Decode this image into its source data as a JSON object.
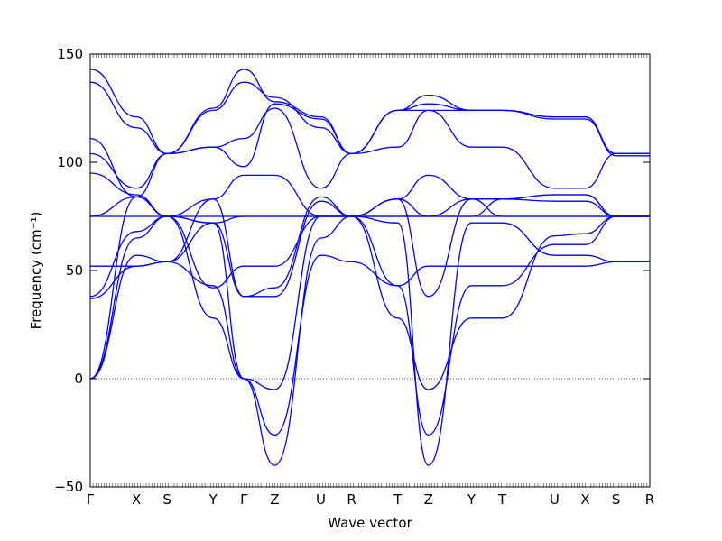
{
  "chart_data": {
    "type": "line",
    "xlabel": "Wave vector",
    "ylabel": "Frequency (cm⁻¹)",
    "ylim": [
      -50,
      150
    ],
    "yticks": [
      -50,
      0,
      50,
      100,
      150
    ],
    "xlim": [
      0,
      18.2
    ],
    "high_symmetry_points": [
      {
        "label": "Γ",
        "x": 0
      },
      {
        "label": "X",
        "x": 1.5
      },
      {
        "label": "S",
        "x": 2.5
      },
      {
        "label": "Y",
        "x": 4.0
      },
      {
        "label": "Γ",
        "x": 5.0
      },
      {
        "label": "Z",
        "x": 6.0
      },
      {
        "label": "U",
        "x": 7.5
      },
      {
        "label": "R",
        "x": 8.5
      },
      {
        "label": "T",
        "x": 10.0
      },
      {
        "label": "Z",
        "x": 11.0
      },
      {
        "label": "Y",
        "x": 12.4
      },
      {
        "label": "T",
        "x": 13.4
      },
      {
        "label": "U",
        "x": 15.1
      },
      {
        "label": "X",
        "x": 16.1
      },
      {
        "label": "S",
        "x": 17.1
      },
      {
        "label": "R",
        "x": 18.2
      }
    ],
    "zero_line": {
      "y": 0,
      "style": "dotted"
    },
    "series_color": "#0000ff",
    "bands": [
      {
        "x": [
          0,
          1.5,
          2.5,
          4.0,
          5.0,
          6.0,
          7.5,
          8.5,
          10.0,
          11.0,
          12.4,
          13.4,
          15.1,
          16.1,
          17.1,
          18.2
        ],
        "y": [
          0,
          84,
          75,
          72,
          0,
          -5,
          75,
          75,
          28,
          -5,
          28,
          28,
          66,
          67,
          75,
          75
        ]
      },
      {
        "x": [
          0,
          1.5,
          2.5,
          4.0,
          5.0,
          6.0,
          7.5,
          8.5,
          10.0,
          11.0,
          12.4,
          13.4,
          15.1,
          16.1,
          17.1,
          18.2
        ],
        "y": [
          0,
          65,
          75,
          28,
          0,
          -26,
          57,
          54,
          43,
          -26,
          43,
          43,
          62,
          62,
          75,
          75
        ]
      },
      {
        "x": [
          0,
          1.5,
          2.5,
          4.0,
          5.0,
          6.0,
          7.5,
          8.5,
          10.0,
          11.0,
          12.4,
          13.4,
          15.1,
          16.1,
          17.1,
          18.2
        ],
        "y": [
          0,
          57,
          54,
          43,
          0,
          -40,
          65,
          75,
          72,
          -40,
          72,
          72,
          57,
          57,
          54,
          54
        ]
      },
      {
        "x": [
          0,
          1.5,
          2.5,
          4.0,
          5.0,
          6.0,
          7.5,
          8.5,
          10.0,
          11.0,
          12.4,
          13.4,
          15.1,
          16.1,
          17.1,
          18.2
        ],
        "y": [
          37,
          52,
          54,
          72,
          38,
          42,
          84,
          75,
          83,
          38,
          83,
          83,
          82,
          82,
          75,
          75
        ]
      },
      {
        "x": [
          0,
          1.5,
          2.5,
          4.0,
          5.0,
          6.0,
          7.5,
          8.5,
          10.0,
          11.0,
          12.4,
          13.4,
          15.1,
          16.1,
          17.1,
          18.2
        ],
        "y": [
          38,
          68,
          75,
          42,
          52,
          52,
          75,
          75,
          43,
          52,
          52,
          52,
          52,
          52,
          54,
          54
        ]
      },
      {
        "x": [
          0,
          1.5,
          2.5,
          4.0,
          5.0,
          6.0,
          7.5,
          8.5,
          10.0,
          11.0,
          12.4,
          13.4,
          15.1,
          16.1,
          17.1,
          18.2
        ],
        "y": [
          52,
          52,
          54,
          83,
          38,
          38,
          82,
          75,
          83,
          94,
          83,
          83,
          85,
          85,
          75,
          75
        ]
      },
      {
        "x": [
          0,
          1.5,
          2.5,
          4.0,
          5.0,
          6.0,
          7.5,
          8.5,
          10.0,
          11.0,
          12.4,
          13.4,
          15.1,
          16.1,
          17.1,
          18.2
        ],
        "y": [
          75,
          75,
          75,
          83,
          94,
          94,
          75,
          75,
          75,
          75,
          75,
          75,
          75,
          75,
          75,
          75
        ]
      },
      {
        "x": [
          0,
          1.5,
          2.5,
          4.0,
          5.0,
          6.0,
          7.5,
          8.5,
          10.0,
          11.0,
          12.4,
          13.4,
          15.1,
          16.1,
          17.1,
          18.2
        ],
        "y": [
          75,
          84,
          75,
          75,
          75,
          75,
          75,
          75,
          75,
          75,
          75,
          83,
          85,
          85,
          75,
          75
        ]
      },
      {
        "x": [
          0,
          1.5,
          2.5,
          4.0,
          5.0,
          6.0,
          7.5,
          8.5,
          10.0,
          11.0,
          12.4,
          13.4,
          15.1,
          16.1,
          17.1,
          18.2
        ],
        "y": [
          95,
          85,
          75,
          72,
          75,
          75,
          75,
          75,
          83,
          75,
          83,
          75,
          75,
          75,
          75,
          75
        ]
      },
      {
        "x": [
          0,
          1.5,
          2.5,
          4.0,
          5.0,
          6.0,
          7.5,
          8.5,
          10.0,
          11.0,
          12.4,
          13.4,
          15.1,
          16.1,
          17.1,
          18.2
        ],
        "y": [
          104,
          88,
          104,
          107,
          111,
          125,
          88,
          104,
          107,
          124,
          107,
          107,
          88,
          88,
          104,
          104
        ]
      },
      {
        "x": [
          0,
          1.5,
          2.5,
          4.0,
          5.0,
          6.0,
          7.5,
          8.5,
          10.0,
          11.0,
          12.4,
          13.4,
          15.1,
          16.1,
          17.1,
          18.2
        ],
        "y": [
          111,
          84,
          104,
          107,
          98,
          127,
          120,
          104,
          124,
          127,
          124,
          124,
          120,
          120,
          104,
          104
        ]
      },
      {
        "x": [
          0,
          1.5,
          2.5,
          4.0,
          5.0,
          6.0,
          7.5,
          8.5,
          10.0,
          11.0,
          12.4,
          13.4,
          15.1,
          16.1,
          17.1,
          18.2
        ],
        "y": [
          137,
          116,
          104,
          124,
          137,
          130,
          116,
          104,
          124,
          131,
          124,
          124,
          121,
          121,
          103,
          103
        ]
      },
      {
        "x": [
          0,
          1.5,
          2.5,
          4.0,
          5.0,
          6.0,
          7.5,
          8.5,
          10.0,
          11.0,
          12.4,
          13.4,
          15.1,
          16.1,
          17.1,
          18.2
        ],
        "y": [
          143,
          121,
          104,
          125,
          143,
          128,
          121,
          104,
          124,
          124,
          124,
          124,
          121,
          121,
          104,
          104
        ]
      }
    ]
  }
}
